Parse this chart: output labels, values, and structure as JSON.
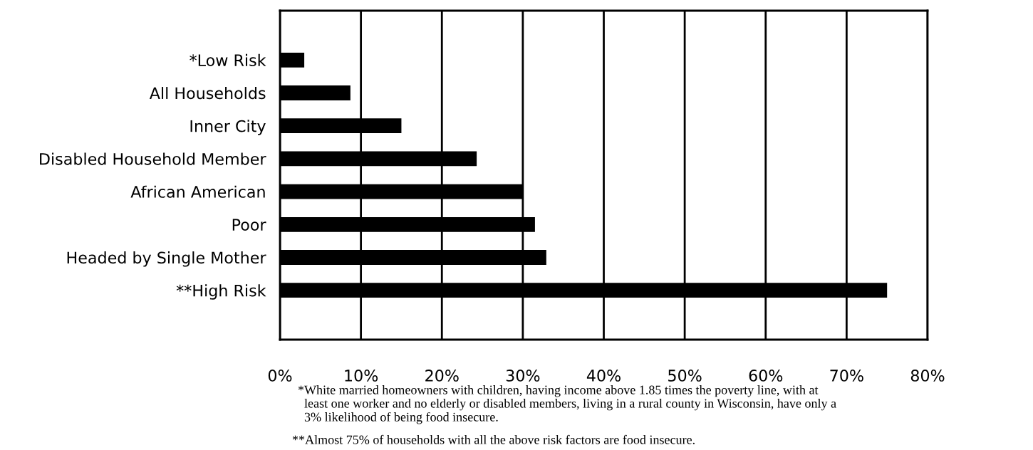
{
  "chart_data": {
    "type": "bar",
    "orientation": "horizontal",
    "categories": [
      "*Low Risk",
      "All Households",
      "Inner City",
      "Disabled Household Member",
      "African American",
      "Poor",
      "Headed by Single Mother",
      "**High Risk"
    ],
    "values": [
      3,
      8.7,
      15,
      24.3,
      30,
      31.5,
      32.9,
      75
    ],
    "color": "#000000",
    "xlim": [
      0,
      80
    ],
    "xticks": [
      {
        "value": 0,
        "label": "0%"
      },
      {
        "value": 10,
        "label": "10%"
      },
      {
        "value": 20,
        "label": "20%"
      },
      {
        "value": 30,
        "label": "30%"
      },
      {
        "value": 40,
        "label": "40%"
      },
      {
        "value": 50,
        "label": "50%"
      },
      {
        "value": 60,
        "label": "60%"
      },
      {
        "value": 70,
        "label": "70%"
      },
      {
        "value": 80,
        "label": "80%"
      }
    ],
    "grid": "x",
    "annotations": [
      "*White married homeowners with children, having income above 1.85 times the poverty line, with at\n  least one worker and no elderly or disabled members, living in a rural county in Wisconsin, have only a\n  3% likelihood of being food insecure.",
      "**Almost 75% of households with all the above risk factors are food insecure."
    ]
  }
}
